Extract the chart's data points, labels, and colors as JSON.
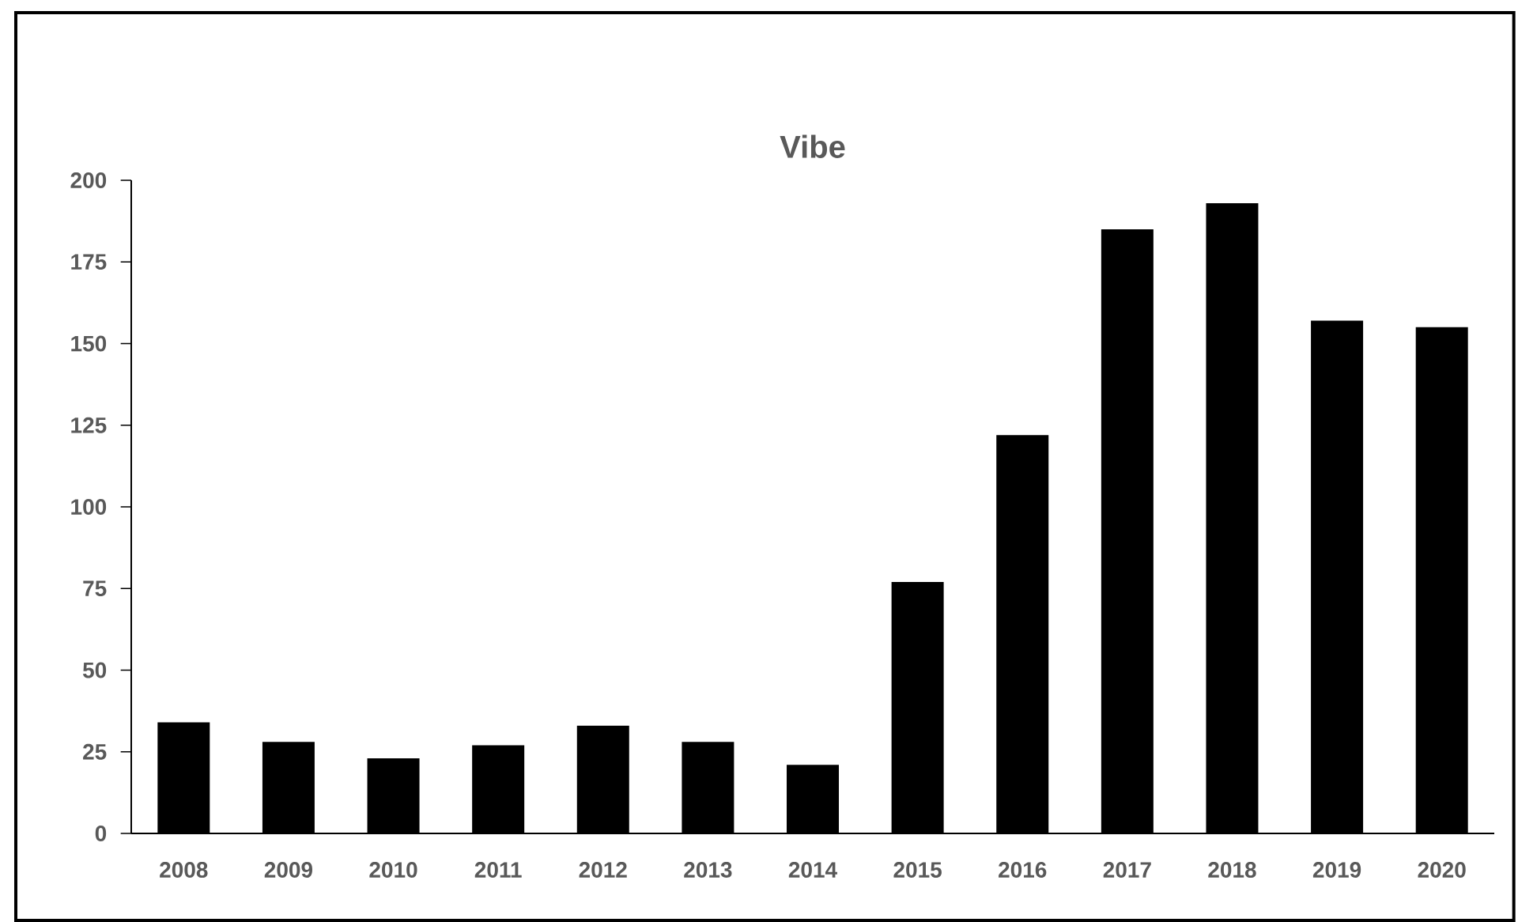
{
  "chart_data": {
    "type": "bar",
    "title": "Vibe",
    "categories": [
      "2008",
      "2009",
      "2010",
      "2011",
      "2012",
      "2013",
      "2014",
      "2015",
      "2016",
      "2017",
      "2018",
      "2019",
      "2020"
    ],
    "values": [
      34,
      28,
      23,
      27,
      33,
      28,
      21,
      77,
      122,
      185,
      193,
      157,
      155
    ],
    "color": "#000000",
    "ylim": [
      0,
      200
    ],
    "yticks": [
      0,
      25,
      50,
      75,
      100,
      125,
      150,
      175,
      200
    ],
    "grid": false
  }
}
